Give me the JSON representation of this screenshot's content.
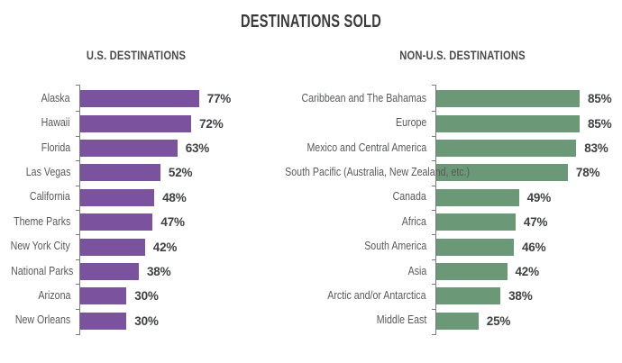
{
  "title": "DESTINATIONS SOLD",
  "colors": {
    "background": "#FFFFFF",
    "title_text": "#3A3A3C",
    "subtitle_text": "#4B4B4E",
    "category_label_text": "#58595B",
    "value_label_text": "#3F4043",
    "axis_line": "#7A7B7E",
    "us_bar": "#7B529E",
    "non_us_bar": "#6B9877"
  },
  "chart_data": [
    {
      "type": "bar",
      "orientation": "horizontal",
      "title": "U.S. DESTINATIONS",
      "categories": [
        "Alaska",
        "Hawaii",
        "Florida",
        "Las Vegas",
        "California",
        "Theme Parks",
        "New York City",
        "National Parks",
        "Arizona",
        "New Orleans"
      ],
      "values": [
        77,
        72,
        63,
        52,
        48,
        47,
        42,
        38,
        30,
        30
      ],
      "value_suffix": "%",
      "xlim": [
        0,
        100
      ],
      "bar_color": "#7B529E",
      "data_labels": true,
      "grid": false,
      "legend": false
    },
    {
      "type": "bar",
      "orientation": "horizontal",
      "title": "NON-U.S. DESTINATIONS",
      "categories": [
        "Caribbean and The Bahamas",
        "Europe",
        "Mexico and Central America",
        "South Pacific (Australia, New Zealand, etc.)",
        "Canada",
        "Africa",
        "South America",
        "Asia",
        "Arctic and/or Antarctica",
        "Middle East"
      ],
      "values": [
        85,
        85,
        83,
        78,
        49,
        47,
        46,
        42,
        38,
        25
      ],
      "value_suffix": "%",
      "xlim": [
        0,
        100
      ],
      "bar_color": "#6B9877",
      "data_labels": true,
      "grid": false,
      "legend": false
    }
  ]
}
